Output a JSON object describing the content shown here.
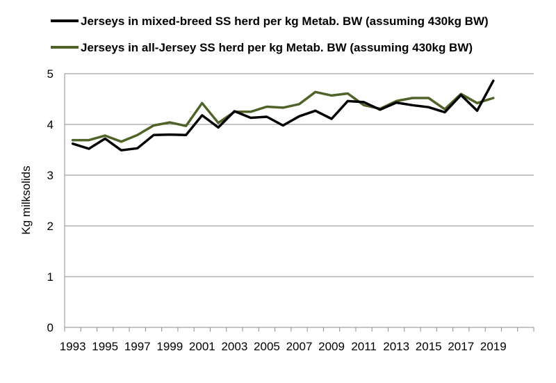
{
  "chart_data": {
    "type": "line",
    "title": "",
    "xlabel": "",
    "ylabel": "Kg milksolids",
    "ylim": [
      0,
      5
    ],
    "yticks": [
      0,
      1,
      2,
      3,
      4,
      5
    ],
    "x": [
      1993,
      1994,
      1995,
      1996,
      1997,
      1998,
      1999,
      2000,
      2001,
      2002,
      2003,
      2004,
      2005,
      2006,
      2007,
      2008,
      2009,
      2010,
      2011,
      2012,
      2013,
      2014,
      2015,
      2016,
      2017,
      2018,
      2019
    ],
    "xtick_labels": [
      "1993",
      "1995",
      "1997",
      "1999",
      "2001",
      "2003",
      "2005",
      "2007",
      "2009",
      "2011",
      "2013",
      "2015",
      "2017",
      "2019"
    ],
    "grid": "horizontal",
    "legend_position": "top",
    "series": [
      {
        "name": "Jerseys in mixed-breed SS herd per kg Metab. BW (assuming 430kg BW)",
        "color": "#000000",
        "values": [
          3.62,
          3.52,
          3.72,
          3.49,
          3.53,
          3.79,
          3.8,
          3.79,
          4.18,
          3.94,
          4.26,
          4.13,
          4.15,
          3.98,
          4.16,
          4.27,
          4.11,
          4.46,
          4.44,
          4.29,
          4.43,
          4.38,
          4.34,
          4.24,
          4.58,
          4.27,
          4.86
        ]
      },
      {
        "name": "Jerseys in all-Jersey SS herd per kg Metab. BW (assuming 430kg BW)",
        "color": "#4f6228",
        "values": [
          3.69,
          3.69,
          3.78,
          3.66,
          3.79,
          3.98,
          4.04,
          3.97,
          4.42,
          4.03,
          4.25,
          4.25,
          4.35,
          4.33,
          4.4,
          4.64,
          4.57,
          4.61,
          4.38,
          4.31,
          4.46,
          4.52,
          4.52,
          4.3,
          4.6,
          4.42,
          4.52
        ]
      }
    ]
  }
}
